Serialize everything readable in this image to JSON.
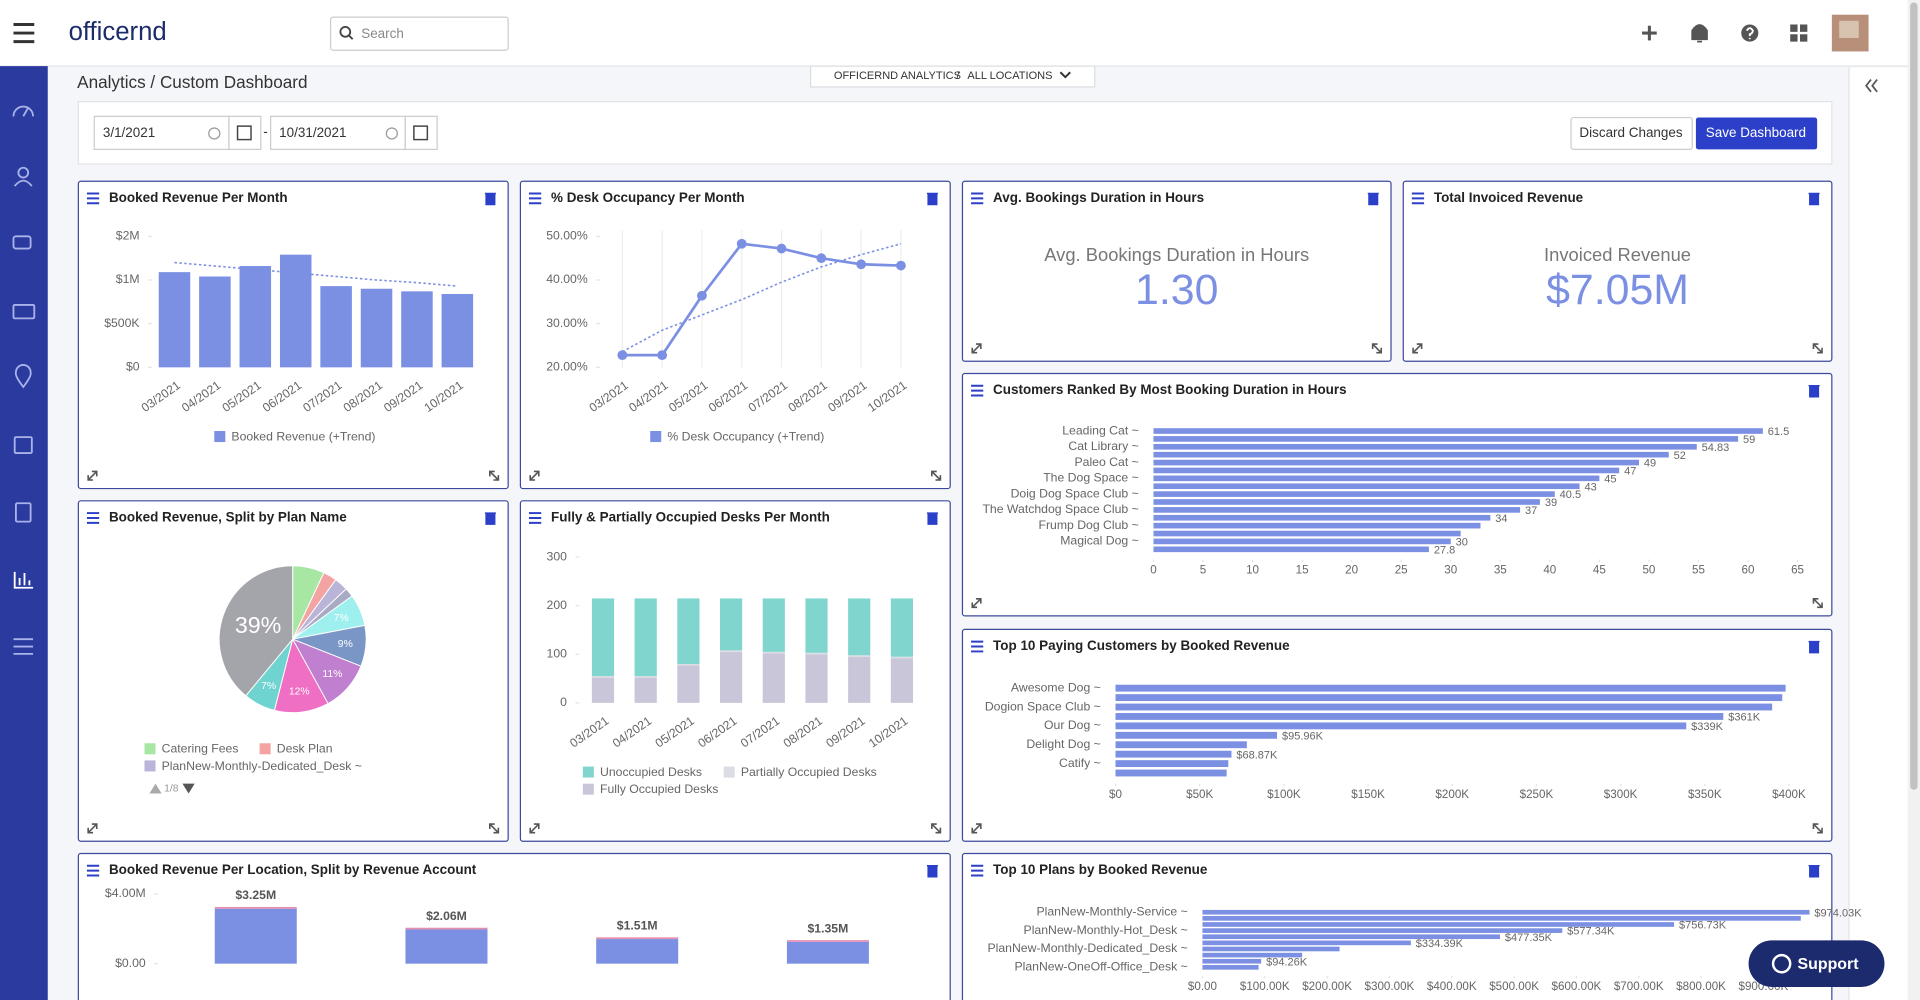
{
  "header": {
    "brand": "officernd",
    "search_placeholder": "Search"
  },
  "breadcrumb": "Analytics / Custom Dashboard",
  "context": {
    "product": "OFFICERND ANALYTICS",
    "separator": "/",
    "location": "ALL LOCATIONS"
  },
  "toolbar": {
    "start_date": "3/1/2021",
    "date_separator": "-",
    "end_date": "10/31/2021",
    "discard": "Discard Changes",
    "save": "Save Dashboard"
  },
  "support": "Support",
  "widgets": [
    {
      "title": "Booked Revenue Per Month",
      "chart_data": {
        "type": "bar",
        "categories": [
          "03/2021",
          "04/2021",
          "05/2021",
          "06/2021",
          "07/2021",
          "08/2021",
          "09/2021",
          "10/2021"
        ],
        "series": [
          {
            "name": "Booked Revenue (+Trend)",
            "color": "#7b8fe3",
            "values": [
              1090000,
              1040000,
              1160000,
              1290000,
              930000,
              900000,
              870000,
              840000
            ],
            "trend": [
              1200000,
              1160000,
              1120000,
              1080000,
              1040000,
              1000000,
              970000,
              930000
            ]
          }
        ],
        "ylim": [
          0,
          1500000
        ],
        "yticks": [
          {
            "value": 0,
            "label": "$0"
          },
          {
            "value": 500000,
            "label": "$500K"
          },
          {
            "value": 1000000,
            "label": "$1M"
          },
          {
            "value": 1500000,
            "label": "$2M"
          }
        ]
      }
    },
    {
      "title": "% Desk Occupancy Per Month",
      "chart_data": {
        "type": "line",
        "categories": [
          "03/2021",
          "04/2021",
          "05/2021",
          "06/2021",
          "07/2021",
          "08/2021",
          "09/2021",
          "10/2021"
        ],
        "series": [
          {
            "name": "% Desk Occupancy (+Trend)",
            "color": "#7b8fe3",
            "values": [
              22.8,
              22.8,
              36.4,
              48.3,
              47.2,
              45,
              43.6,
              43.3
            ],
            "trend": [
              23.6,
              28.5,
              32,
              35.5,
              39.5,
              43,
              45.8,
              48.3
            ]
          }
        ],
        "ylim": [
          20,
          50
        ],
        "yticks": [
          {
            "value": 20,
            "label": "20.00%"
          },
          {
            "value": 30,
            "label": "30.00%"
          },
          {
            "value": 40,
            "label": "40.00%"
          },
          {
            "value": 50,
            "label": "50.00%"
          }
        ],
        "grid": true
      }
    },
    {
      "title": "Avg. Bookings Duration in Hours",
      "chart_data": {
        "type": "kpi",
        "label": "Avg. Bookings Duration in Hours",
        "value": "1.30"
      }
    },
    {
      "title": "Total Invoiced Revenue",
      "chart_data": {
        "type": "kpi",
        "label": "Invoiced Revenue",
        "value": "$7.05M"
      }
    },
    {
      "title": "Customers Ranked By Most Booking Duration in Hours",
      "chart_data": {
        "type": "hbar",
        "color": "#7b8fe3",
        "categories": [
          "Leading Cat ~",
          null,
          "Cat Library ~",
          null,
          "Paleo Cat ~",
          null,
          "The Dog Space ~",
          null,
          "Doig Dog Space Club ~",
          null,
          "The Watchdog Space Club ~",
          null,
          "Frump Dog Club ~",
          null,
          "Magical Dog ~",
          null
        ],
        "values": [
          61.5,
          59,
          54.83,
          52,
          49,
          47,
          45,
          43,
          40.5,
          39,
          37,
          34,
          33,
          31,
          30,
          27.8
        ],
        "value_labels": [
          "61.5",
          "59",
          "54.83",
          "52",
          "49",
          "47",
          "45",
          "43",
          "40.5",
          "39",
          "37",
          "34",
          null,
          null,
          "30",
          "27.8"
        ],
        "xlim": [
          0,
          65
        ],
        "xticks": [
          0,
          5,
          10,
          15,
          20,
          25,
          30,
          35,
          40,
          45,
          50,
          55,
          60,
          65
        ]
      }
    },
    {
      "title": "Top 10 Paying Customers by Booked Revenue",
      "chart_data": {
        "type": "hbar",
        "color": "#7b8fe3",
        "categories": [
          "Awesome Dog ~",
          null,
          "Dogion Space Club ~",
          null,
          "Our Dog ~",
          null,
          "Delight Dog ~",
          null,
          "Catify ~",
          null
        ],
        "values": [
          398000,
          396000,
          390000,
          361000,
          339000,
          95960,
          78000,
          68870,
          67000,
          66000
        ],
        "value_labels": [
          null,
          null,
          null,
          "$361K",
          "$339K",
          "$95.96K",
          null,
          "$68.87K",
          null,
          null
        ],
        "xlim": [
          0,
          400000
        ],
        "xticks": [
          {
            "value": 0,
            "label": "$0"
          },
          {
            "value": 50000,
            "label": "$50K"
          },
          {
            "value": 100000,
            "label": "$100K"
          },
          {
            "value": 150000,
            "label": "$150K"
          },
          {
            "value": 200000,
            "label": "$200K"
          },
          {
            "value": 250000,
            "label": "$250K"
          },
          {
            "value": 300000,
            "label": "$300K"
          },
          {
            "value": 350000,
            "label": "$350K"
          },
          {
            "value": 400000,
            "label": "$400K"
          }
        ]
      }
    },
    {
      "title": "Booked Revenue, Split by Plan Name",
      "chart_data": {
        "type": "pie",
        "categories": [
          "Catering Fees",
          "Desk Plan",
          "PlanNew-Monthly-Dedicated_Desk ~",
          null,
          null,
          null,
          null,
          null,
          null,
          null
        ],
        "values": [
          7,
          3,
          3,
          2,
          7,
          9,
          11,
          12,
          7,
          39
        ],
        "value_labels": [
          null,
          null,
          null,
          null,
          "7%",
          "9%",
          "11%",
          "12%",
          "7%",
          "39%"
        ],
        "colors": [
          "#a8e6a3",
          "#f4a3a3",
          "#b9b4d8",
          "#a9abc4",
          "#9ef0ee",
          "#7a96c6",
          "#c07fcf",
          "#ee6fc4",
          "#6fd3cf",
          "#a4a4ab"
        ],
        "pager": "1/8"
      }
    },
    {
      "title": "Fully & Partially Occupied Desks Per Month",
      "chart_data": {
        "type": "stacked",
        "categories": [
          "03/2021",
          "04/2021",
          "05/2021",
          "06/2021",
          "07/2021",
          "08/2021",
          "09/2021",
          "10/2021"
        ],
        "series": [
          {
            "name": "Fully Occupied Desks",
            "color": "#c9c6da",
            "values": [
              52,
              52,
              77,
              105,
              102,
              100,
              95,
              92
            ]
          },
          {
            "name": "Partially Occupied Desks",
            "color": "#dcdce3",
            "values": [
              3,
              3,
              3,
              3,
              3,
              3,
              3,
              3
            ]
          },
          {
            "name": "Unoccupied Desks",
            "color": "#80d6cf",
            "values": [
              160,
              160,
              135,
              107,
              110,
              112,
              117,
              120
            ]
          }
        ],
        "ylim": [
          0,
          300
        ],
        "yticks": [
          0,
          100,
          200,
          300
        ]
      }
    },
    {
      "title": "Booked Revenue Per Location, Split by Revenue Account",
      "chart_data": {
        "type": "stacked",
        "categories": [
          null,
          null,
          null,
          null
        ],
        "series": [
          {
            "color": "#7b8fe3",
            "values": [
              3150000,
              1960000,
              1410000,
              1250000
            ]
          },
          {
            "color": "#e58fb0",
            "values": [
              100000,
              100000,
              100000,
              100000
            ]
          }
        ],
        "total_labels": [
          "$3.25M",
          "$2.06M",
          "$1.51M",
          "$1.35M"
        ],
        "ylim": [
          0,
          4000000
        ],
        "yticks": [
          {
            "value": 0,
            "label": "$0.00"
          },
          {
            "value": 4000000,
            "label": "$4.00M"
          }
        ]
      }
    },
    {
      "title": "Top 10 Plans by Booked Revenue",
      "chart_data": {
        "type": "hbar",
        "color": "#7b8fe3",
        "categories": [
          "PlanNew-Monthly-Service ~",
          null,
          null,
          "PlanNew-Monthly-Hot_Desk ~",
          null,
          null,
          "PlanNew-Monthly-Dedicated_Desk ~",
          null,
          null,
          "PlanNew-OneOff-Office_Desk ~"
        ],
        "values": [
          974030,
          960000,
          756730,
          577340,
          477350,
          334390,
          220000,
          160000,
          94260,
          90000
        ],
        "value_labels": [
          "$974.03K",
          null,
          "$756.73K",
          "$577.34K",
          "$477.35K",
          "$334.39K",
          null,
          null,
          "$94.26K",
          null
        ],
        "xlim": [
          0,
          1000000
        ],
        "xticks": [
          {
            "value": 0,
            "label": "$0.00"
          },
          {
            "value": 100000,
            "label": "$100.00K"
          },
          {
            "value": 200000,
            "label": "$200.00K"
          },
          {
            "value": 300000,
            "label": "$300.00K"
          },
          {
            "value": 400000,
            "label": "$400.00K"
          },
          {
            "value": 500000,
            "label": "$500.00K"
          },
          {
            "value": 600000,
            "label": "$600.00K"
          },
          {
            "value": 700000,
            "label": "$700.00K"
          },
          {
            "value": 800000,
            "label": "$800.00K"
          },
          {
            "value": 900000,
            "label": "$900.00K"
          }
        ]
      }
    }
  ]
}
